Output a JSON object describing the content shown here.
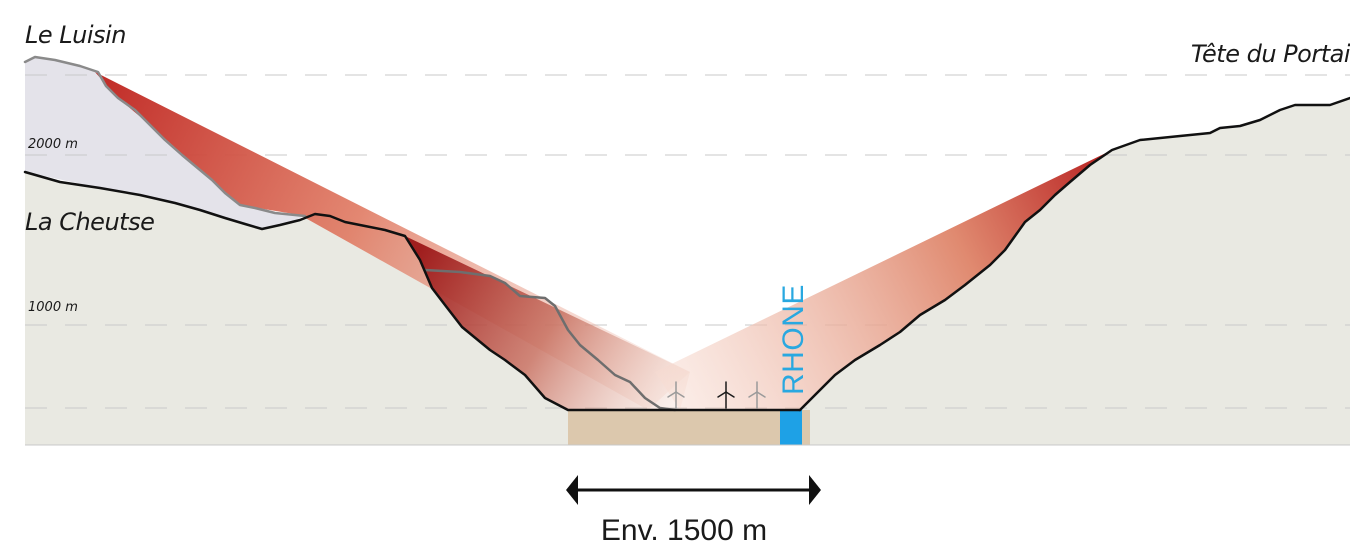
{
  "labels": {
    "peak_left": "Le Luisin",
    "peak_right": "Tête du Portai",
    "ridge_left": "La Cheutse",
    "river": "RHONE",
    "valley_width": "Env. 1500 m"
  },
  "elevations": {
    "high": "2000 m",
    "mid": "1000 m"
  },
  "colors": {
    "background": "#ffffff",
    "terrain_fill": "#e9e9e2",
    "back_ridge_fill": "#e4e3ea",
    "valley_floor": "#dcc8ad",
    "river": "#1ea1e6",
    "shade_dark": "#c02a26",
    "outline": "#111111"
  },
  "icons": [
    "wind-turbine-icon",
    "double-arrow-icon"
  ]
}
